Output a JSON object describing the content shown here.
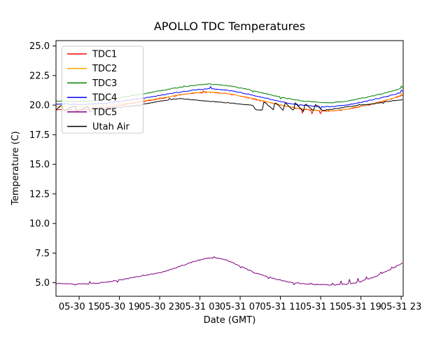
{
  "figure": {
    "title": "APOLLO TDC Temperatures",
    "xlabel": "Date (GMT)",
    "ylabel": "Temperature (C)",
    "background": "#ffffff"
  },
  "legend": {
    "position": "upper-left",
    "entries": [
      {
        "label": "TDC1",
        "color": "#ff0000"
      },
      {
        "label": "TDC2",
        "color": "#ffa500"
      },
      {
        "label": "TDC3",
        "color": "#008000"
      },
      {
        "label": "TDC4",
        "color": "#0000ff"
      },
      {
        "label": "TDC5",
        "color": "#800080"
      },
      {
        "label": "Utah Air",
        "color": "#000000"
      }
    ]
  },
  "chart_data": {
    "type": "line",
    "title": "APOLLO TDC Temperatures",
    "xlabel": "Date (GMT)",
    "ylabel": "Temperature (C)",
    "x_unit": "hours after 05-30 12:00 GMT",
    "xlim": [
      0.7,
      35.2
    ],
    "ylim": [
      3.85,
      25.45
    ],
    "grid": false,
    "x_ticks": [
      {
        "t": 3,
        "label": "05-30 15"
      },
      {
        "t": 7,
        "label": "05-30 19"
      },
      {
        "t": 11,
        "label": "05-30 23"
      },
      {
        "t": 15,
        "label": "05-31 03"
      },
      {
        "t": 19,
        "label": "05-31 07"
      },
      {
        "t": 23,
        "label": "05-31 11"
      },
      {
        "t": 27,
        "label": "05-31 15"
      },
      {
        "t": 31,
        "label": "05-31 19"
      },
      {
        "t": 35,
        "label": "05-31 23"
      }
    ],
    "y_ticks": [
      {
        "v": 5.0,
        "label": "5.0"
      },
      {
        "v": 7.5,
        "label": "7.5"
      },
      {
        "v": 10.0,
        "label": "10.0"
      },
      {
        "v": 12.5,
        "label": "12.5"
      },
      {
        "v": 15.0,
        "label": "15.0"
      },
      {
        "v": 17.5,
        "label": "17.5"
      },
      {
        "v": 20.0,
        "label": "20.0"
      },
      {
        "v": 22.5,
        "label": "22.5"
      },
      {
        "v": 25.0,
        "label": "25.0"
      }
    ],
    "series": [
      {
        "name": "TDC1",
        "color": "#ff0000",
        "noise": 0.035,
        "points": [
          [
            0.7,
            19.62
          ],
          [
            2,
            19.58
          ],
          [
            3,
            19.6
          ],
          [
            4,
            19.65
          ],
          [
            5,
            19.72
          ],
          [
            6,
            19.82
          ],
          [
            7,
            19.95
          ],
          [
            8,
            20.1
          ],
          [
            9,
            20.25
          ],
          [
            10,
            20.4
          ],
          [
            11,
            20.55
          ],
          [
            12,
            20.7
          ],
          [
            13,
            20.85
          ],
          [
            14,
            20.98
          ],
          [
            15,
            21.05
          ],
          [
            15.8,
            21.08
          ],
          [
            16.6,
            21.05
          ],
          [
            17.5,
            20.98
          ],
          [
            18.5,
            20.85
          ],
          [
            19.5,
            20.68
          ],
          [
            20.5,
            20.5
          ],
          [
            21.5,
            20.3
          ],
          [
            22.5,
            20.1
          ],
          [
            23.5,
            19.92
          ],
          [
            24.5,
            19.75
          ],
          [
            25.5,
            19.62
          ],
          [
            26.5,
            19.55
          ],
          [
            27.3,
            19.5
          ],
          [
            28,
            19.5
          ],
          [
            28.8,
            19.55
          ],
          [
            29.6,
            19.65
          ],
          [
            30.5,
            19.8
          ],
          [
            31.5,
            19.98
          ],
          [
            32.5,
            20.18
          ],
          [
            33.5,
            20.4
          ],
          [
            34.5,
            20.65
          ],
          [
            35.2,
            20.85
          ]
        ],
        "spikes": [
          [
            15.3,
            0.15
          ],
          [
            25.2,
            -0.35
          ],
          [
            26.1,
            -0.3
          ],
          [
            27.0,
            -0.25
          ]
        ]
      },
      {
        "name": "TDC2",
        "color": "#ffa500",
        "noise": 0.035,
        "points": [
          [
            0.7,
            19.88
          ],
          [
            2,
            19.85
          ],
          [
            3,
            19.85
          ],
          [
            4,
            19.88
          ],
          [
            5,
            19.93
          ],
          [
            6,
            20.0
          ],
          [
            7,
            20.08
          ],
          [
            8,
            20.18
          ],
          [
            9,
            20.3
          ],
          [
            10,
            20.44
          ],
          [
            11,
            20.58
          ],
          [
            12,
            20.72
          ],
          [
            13,
            20.87
          ],
          [
            14,
            21.0
          ],
          [
            15,
            21.08
          ],
          [
            15.8,
            21.12
          ],
          [
            16.6,
            21.08
          ],
          [
            17.5,
            21.0
          ],
          [
            18.5,
            20.87
          ],
          [
            19.5,
            20.7
          ],
          [
            20.5,
            20.52
          ],
          [
            21.5,
            20.32
          ],
          [
            22.5,
            20.12
          ],
          [
            23.5,
            19.94
          ],
          [
            24.5,
            19.78
          ],
          [
            25.5,
            19.65
          ],
          [
            26.5,
            19.57
          ],
          [
            27.3,
            19.53
          ],
          [
            28,
            19.53
          ],
          [
            28.8,
            19.58
          ],
          [
            29.6,
            19.67
          ],
          [
            30.5,
            19.82
          ],
          [
            31.5,
            20.0
          ],
          [
            32.5,
            20.2
          ],
          [
            33.5,
            20.42
          ],
          [
            34.5,
            20.68
          ],
          [
            35.2,
            20.9
          ]
        ],
        "spikes": [
          [
            9.5,
            0.12
          ],
          [
            21.0,
            -0.12
          ],
          [
            35.0,
            0.15
          ]
        ]
      },
      {
        "name": "TDC3",
        "color": "#008000",
        "noise": 0.035,
        "points": [
          [
            0.7,
            20.35
          ],
          [
            2,
            20.32
          ],
          [
            3,
            20.3
          ],
          [
            4,
            20.33
          ],
          [
            5,
            20.4
          ],
          [
            6,
            20.5
          ],
          [
            7,
            20.62
          ],
          [
            8,
            20.76
          ],
          [
            9,
            20.9
          ],
          [
            10,
            21.05
          ],
          [
            11,
            21.2
          ],
          [
            12,
            21.35
          ],
          [
            13,
            21.5
          ],
          [
            14,
            21.62
          ],
          [
            15,
            21.72
          ],
          [
            15.8,
            21.78
          ],
          [
            16.6,
            21.75
          ],
          [
            17.5,
            21.68
          ],
          [
            18.5,
            21.55
          ],
          [
            19.5,
            21.38
          ],
          [
            20.5,
            21.18
          ],
          [
            21.5,
            20.98
          ],
          [
            22.5,
            20.78
          ],
          [
            23.5,
            20.6
          ],
          [
            24.5,
            20.45
          ],
          [
            25.5,
            20.33
          ],
          [
            26.5,
            20.25
          ],
          [
            27.3,
            20.2
          ],
          [
            28,
            20.2
          ],
          [
            28.8,
            20.25
          ],
          [
            29.6,
            20.35
          ],
          [
            30.5,
            20.48
          ],
          [
            31.5,
            20.65
          ],
          [
            32.5,
            20.85
          ],
          [
            33.5,
            21.05
          ],
          [
            34.5,
            21.28
          ],
          [
            35.2,
            21.5
          ]
        ],
        "spikes": [
          [
            13.4,
            0.1
          ],
          [
            20.3,
            -0.12
          ],
          [
            23.0,
            -0.15
          ],
          [
            35.05,
            0.15
          ]
        ]
      },
      {
        "name": "TDC4",
        "color": "#0000ff",
        "noise": 0.035,
        "points": [
          [
            0.7,
            20.12
          ],
          [
            2,
            20.08
          ],
          [
            3,
            20.06
          ],
          [
            4,
            20.08
          ],
          [
            5,
            20.13
          ],
          [
            6,
            20.2
          ],
          [
            7,
            20.3
          ],
          [
            8,
            20.42
          ],
          [
            9,
            20.55
          ],
          [
            10,
            20.68
          ],
          [
            11,
            20.82
          ],
          [
            12,
            20.97
          ],
          [
            13,
            21.1
          ],
          [
            14,
            21.22
          ],
          [
            15,
            21.32
          ],
          [
            15.8,
            21.38
          ],
          [
            16.6,
            21.35
          ],
          [
            17.5,
            21.28
          ],
          [
            18.5,
            21.15
          ],
          [
            19.5,
            20.98
          ],
          [
            20.5,
            20.8
          ],
          [
            21.5,
            20.6
          ],
          [
            22.5,
            20.4
          ],
          [
            23.5,
            20.22
          ],
          [
            24.5,
            20.08
          ],
          [
            25.5,
            19.97
          ],
          [
            26.5,
            19.9
          ],
          [
            27.3,
            19.87
          ],
          [
            28,
            19.88
          ],
          [
            28.8,
            19.93
          ],
          [
            29.6,
            20.02
          ],
          [
            30.5,
            20.15
          ],
          [
            31.5,
            20.32
          ],
          [
            32.5,
            20.52
          ],
          [
            33.5,
            20.72
          ],
          [
            34.5,
            20.95
          ],
          [
            35.2,
            21.15
          ]
        ],
        "spikes": [
          [
            16.0,
            0.18
          ],
          [
            24.8,
            -0.15
          ],
          [
            27.0,
            -0.2
          ],
          [
            35.05,
            0.18
          ]
        ]
      },
      {
        "name": "TDC5",
        "color": "#800080",
        "noise": 0.04,
        "points": [
          [
            0.7,
            4.93
          ],
          [
            2,
            4.9
          ],
          [
            3.2,
            4.88
          ],
          [
            4.2,
            4.92
          ],
          [
            5,
            4.98
          ],
          [
            6,
            5.08
          ],
          [
            7,
            5.22
          ],
          [
            8,
            5.38
          ],
          [
            9,
            5.52
          ],
          [
            10,
            5.68
          ],
          [
            11,
            5.85
          ],
          [
            12,
            6.08
          ],
          [
            13,
            6.38
          ],
          [
            14,
            6.68
          ],
          [
            15,
            6.93
          ],
          [
            15.7,
            7.06
          ],
          [
            16.2,
            7.11
          ],
          [
            16.8,
            7.07
          ],
          [
            17.5,
            6.95
          ],
          [
            18.5,
            6.6
          ],
          [
            19.5,
            6.2
          ],
          [
            20.5,
            5.82
          ],
          [
            21.5,
            5.55
          ],
          [
            22.5,
            5.32
          ],
          [
            23.5,
            5.12
          ],
          [
            24.5,
            4.98
          ],
          [
            25.5,
            4.9
          ],
          [
            26.5,
            4.85
          ],
          [
            27.5,
            4.82
          ],
          [
            28.5,
            4.81
          ],
          [
            29.5,
            4.85
          ],
          [
            30.3,
            4.95
          ],
          [
            31.1,
            5.12
          ],
          [
            31.9,
            5.35
          ],
          [
            32.7,
            5.62
          ],
          [
            33.5,
            5.92
          ],
          [
            34.3,
            6.28
          ],
          [
            35.2,
            6.72
          ]
        ],
        "spikes": [
          [
            2.6,
            -0.12
          ],
          [
            4.1,
            0.22
          ],
          [
            6.8,
            -0.18
          ],
          [
            9.3,
            0.1
          ],
          [
            16.4,
            0.12
          ],
          [
            19.0,
            -0.1
          ],
          [
            21.8,
            -0.12
          ],
          [
            24.3,
            -0.15
          ],
          [
            26.0,
            0.1
          ],
          [
            28.2,
            0.12
          ],
          [
            29.0,
            0.3
          ],
          [
            29.9,
            0.42
          ],
          [
            30.7,
            0.3
          ],
          [
            31.5,
            0.22
          ],
          [
            33.0,
            0.15
          ],
          [
            34.1,
            0.12
          ]
        ]
      },
      {
        "name": "Utah Air",
        "color": "#000000",
        "noise": 0.025,
        "points": [
          [
            0.7,
            19.62
          ],
          [
            1.3,
            20.05
          ],
          [
            1.45,
            19.5
          ],
          [
            2.6,
            19.98
          ],
          [
            2.75,
            19.45
          ],
          [
            3.9,
            19.9
          ],
          [
            4.05,
            19.42
          ],
          [
            5.2,
            19.85
          ],
          [
            5.35,
            19.6
          ],
          [
            6.5,
            19.78
          ],
          [
            7.5,
            19.85
          ],
          [
            8.5,
            19.95
          ],
          [
            9.5,
            20.1
          ],
          [
            10.5,
            20.25
          ],
          [
            11.5,
            20.4
          ],
          [
            12.3,
            20.5
          ],
          [
            13,
            20.55
          ],
          [
            13.8,
            20.5
          ],
          [
            15,
            20.4
          ],
          [
            16,
            20.32
          ],
          [
            17,
            20.25
          ],
          [
            18,
            20.18
          ],
          [
            19,
            20.1
          ],
          [
            19.8,
            20.02
          ],
          [
            20.3,
            19.98
          ],
          [
            20.45,
            19.65
          ],
          [
            21.2,
            19.55
          ],
          [
            21.35,
            20.3
          ],
          [
            22.3,
            19.6
          ],
          [
            22.45,
            20.28
          ],
          [
            23.3,
            19.55
          ],
          [
            23.45,
            20.25
          ],
          [
            24.3,
            19.5
          ],
          [
            24.45,
            20.2
          ],
          [
            25.3,
            19.48
          ],
          [
            25.45,
            20.15
          ],
          [
            26.3,
            19.5
          ],
          [
            26.45,
            20.1
          ],
          [
            27.2,
            19.55
          ],
          [
            27.6,
            19.6
          ],
          [
            28.5,
            19.7
          ],
          [
            29.5,
            19.85
          ],
          [
            30.5,
            19.95
          ],
          [
            31.5,
            20.05
          ],
          [
            32.5,
            20.15
          ],
          [
            33.5,
            20.28
          ],
          [
            34.5,
            20.4
          ],
          [
            35.2,
            20.45
          ]
        ],
        "spikes": [
          [
            9.0,
            -0.15
          ],
          [
            12.0,
            0.1
          ],
          [
            30.8,
            0.12
          ],
          [
            33.2,
            -0.1
          ]
        ]
      }
    ]
  }
}
